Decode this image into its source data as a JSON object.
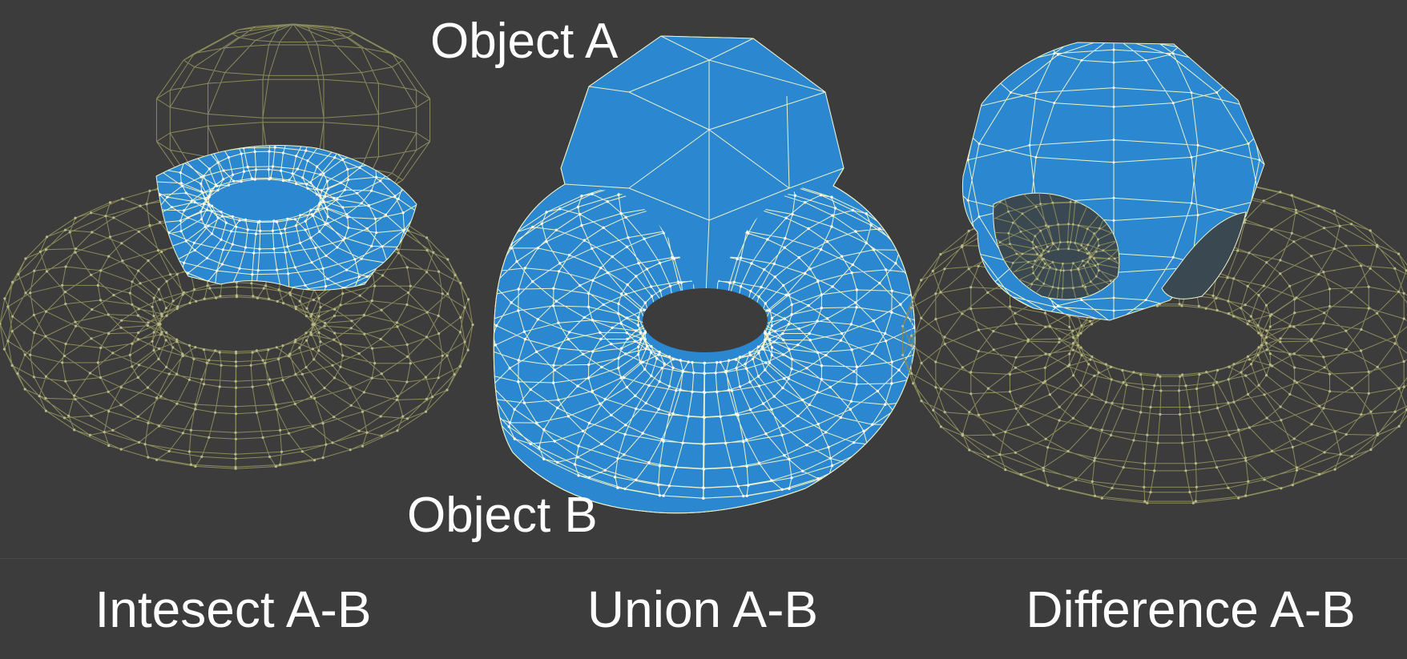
{
  "labels": {
    "object_a": "Object A",
    "object_b": "Object B"
  },
  "captions": {
    "intersect": "Intesect A-B",
    "union": "Union A-B",
    "difference": "Difference A-B"
  },
  "colors": {
    "background": "#3c3c3c",
    "solid_fill": "#2b88d0",
    "solid_edge": "#eef2c8",
    "wire": "#8a8a5a",
    "wire_vertex": "#b8b88a"
  }
}
